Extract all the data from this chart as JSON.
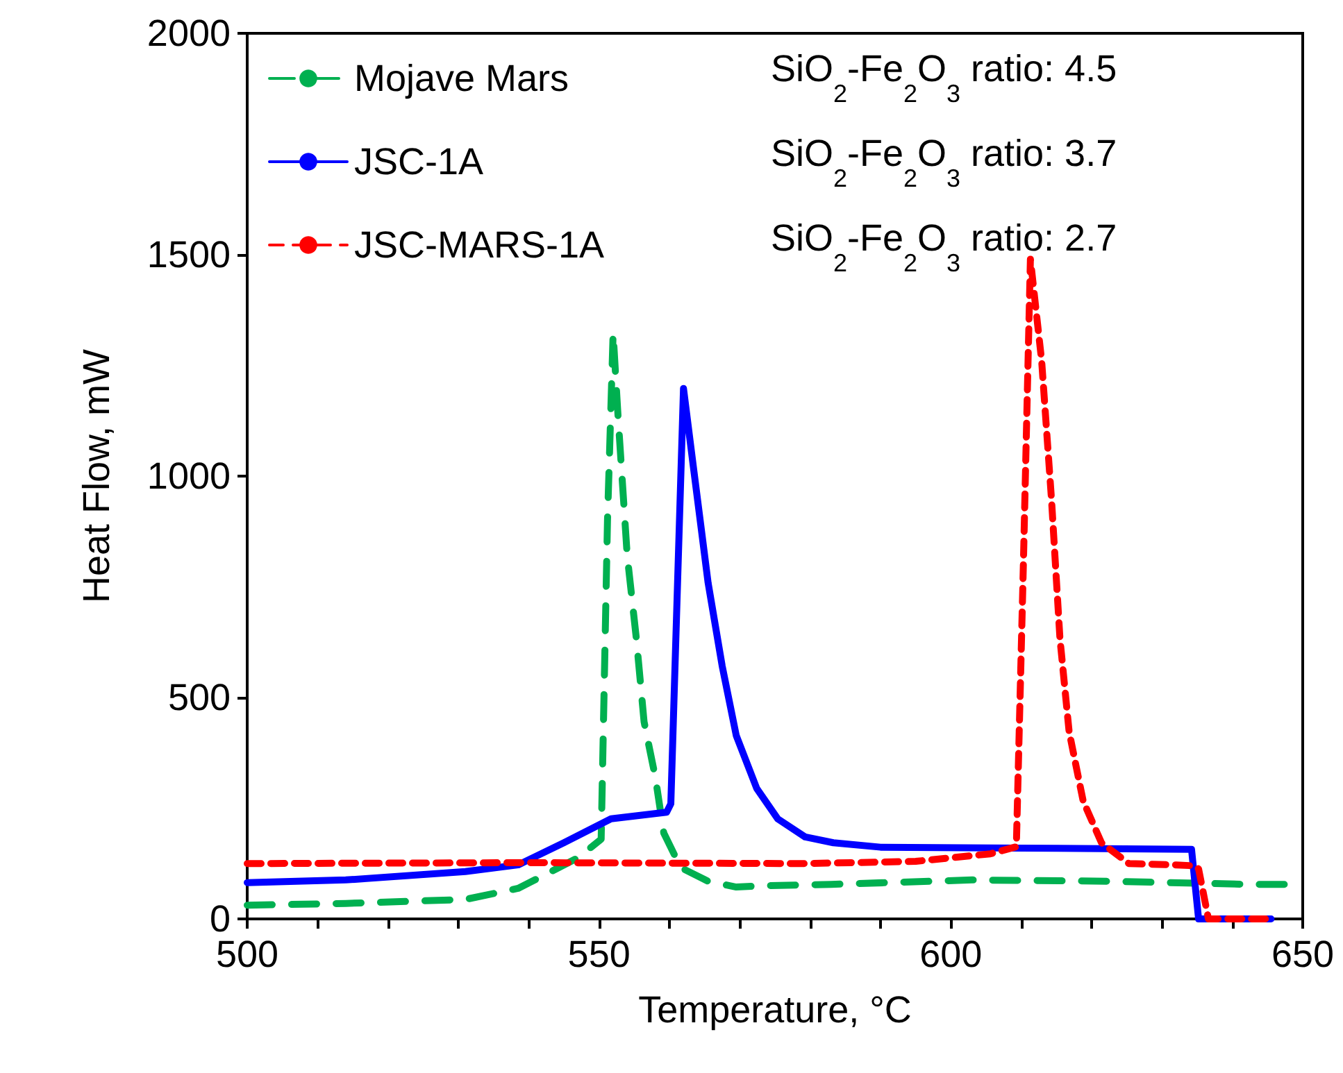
{
  "chart_data": {
    "type": "line",
    "xlabel": "Temperature, °C",
    "ylabel": "Heat Flow, mW",
    "xlim": [
      500,
      650
    ],
    "xticks": [
      500,
      {
        "value": 510,
        "label": null
      },
      {
        "value": 520,
        "label": null
      },
      {
        "value": 530,
        "label": null
      },
      {
        "value": 540,
        "label": null
      },
      550,
      {
        "value": 560,
        "label": null
      },
      {
        "value": 570,
        "label": null
      },
      {
        "value": 580,
        "label": null
      },
      {
        "value": 590,
        "label": null
      },
      600,
      {
        "value": 610,
        "label": null
      },
      {
        "value": 620,
        "label": null
      },
      {
        "value": 630,
        "label": null
      },
      {
        "value": 640,
        "label": null
      },
      650
    ],
    "ylim": [
      0,
      2000
    ],
    "yticks": [
      0,
      500,
      1000,
      1500,
      2000
    ],
    "grid": false,
    "legend": "top left",
    "marker": "none",
    "annotations": [
      "SiO$_{2}$-Fe$_{2}$O$_{3}$ ratio: 4.5",
      "SiO$_{2}$-Fe$_{2}$O$_{3}$ ratio: 3.7",
      "SiO$_{2}$-Fe$_{2}$O$_{3}$ ratio: 2.7"
    ],
    "series": [
      {
        "name": "Mojave Mars",
        "color": "#00b050",
        "line_style": "dashed",
        "x": [
          500,
          514,
          531,
          538.5,
          547,
          550.3,
          551.2,
          552,
          552.7,
          554,
          555.3,
          556.4,
          558,
          559.2,
          561.6,
          565.5,
          569.5,
          573.4,
          583,
          603,
          622.8,
          642.5,
          647.4
        ],
        "values": [
          31,
          35,
          44,
          69,
          138,
          180,
          900,
          1323,
          1135,
          821,
          633,
          445,
          320,
          194,
          116,
          85,
          72,
          75,
          78,
          88,
          85,
          78,
          78
        ]
      },
      {
        "name": "JSC-1A",
        "color": "#0000ff",
        "line_style": "solid",
        "x": [
          500,
          514,
          531,
          538.5,
          545,
          551.7,
          559.6,
          560.2,
          562,
          563.5,
          565.5,
          567.5,
          569.5,
          572.4,
          575.4,
          579.3,
          583.3,
          590,
          610,
          634.2,
          635.2,
          645.5
        ],
        "values": [
          82,
          88,
          107,
          122,
          172,
          226,
          241,
          260,
          1198,
          1009,
          759,
          571,
          414,
          295,
          226,
          185,
          172,
          162,
          160,
          157,
          0,
          0
        ]
      },
      {
        "name": "JSC-MARS-1A",
        "color": "#ff0000",
        "line_style": "dashed",
        "x": [
          500,
          540,
          579.3,
          595,
          605.6,
          609.3,
          610.3,
          611.3,
          612.9,
          614.3,
          615.5,
          616.8,
          618.8,
          621.4,
          625.3,
          632,
          634.5,
          635.2,
          636.6,
          644.9
        ],
        "values": [
          125,
          127,
          125,
          130,
          147,
          163,
          800,
          1490,
          1260,
          947,
          633,
          423,
          266,
          172,
          125,
          122,
          120,
          113,
          0,
          0
        ]
      }
    ]
  }
}
